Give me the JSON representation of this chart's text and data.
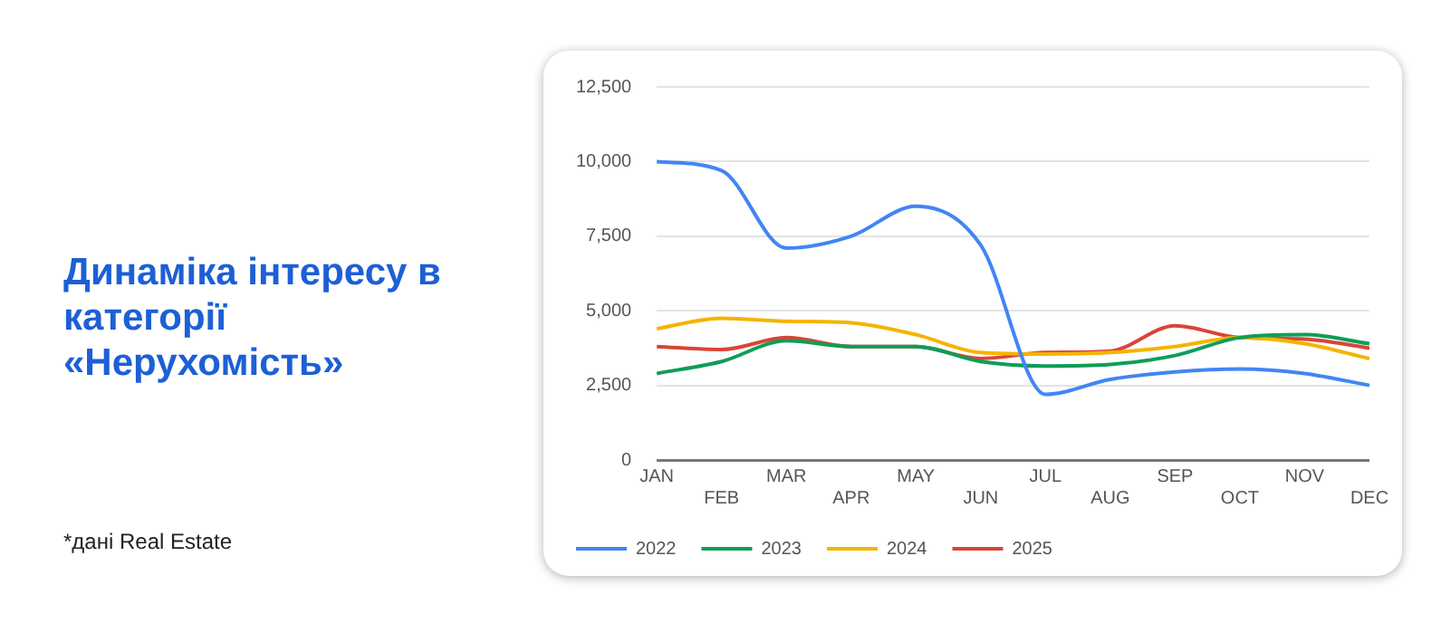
{
  "chart_data": {
    "type": "line",
    "title": "Динаміка інтересу в категорії «Нерухомість»",
    "annotations": [
      "*дані Real Estate"
    ],
    "categories": [
      "JAN",
      "FEB",
      "MAR",
      "APR",
      "MAY",
      "JUN",
      "JUL",
      "AUG",
      "SEP",
      "OCT",
      "NOV",
      "DEC"
    ],
    "series": [
      {
        "name": "2022",
        "color": "#4285f4",
        "values": [
          10000,
          9700,
          7100,
          7500,
          8500,
          7200,
          2200,
          2700,
          2950,
          3050,
          2900,
          2500
        ]
      },
      {
        "name": "2023",
        "color": "#0f9d58",
        "values": [
          2900,
          3300,
          4000,
          3800,
          3800,
          3300,
          3150,
          3200,
          3500,
          4100,
          4200,
          3900
        ]
      },
      {
        "name": "2024",
        "color": "#f4b400",
        "values": [
          4400,
          4750,
          4650,
          4600,
          4200,
          3600,
          3550,
          3600,
          3800,
          4100,
          3900,
          3400
        ]
      },
      {
        "name": "2025",
        "color": "#db4437",
        "values": [
          3800,
          3700,
          4100,
          3800,
          3800,
          3400,
          3600,
          3650,
          4500,
          4100,
          4050,
          3750
        ]
      }
    ],
    "ylim": [
      0,
      12500
    ],
    "yticks": [
      {
        "value": 0,
        "label": "0"
      },
      {
        "value": 2500,
        "label": "2,500"
      },
      {
        "value": 5000,
        "label": "5,000"
      },
      {
        "value": 7500,
        "label": "7,500"
      },
      {
        "value": 10000,
        "label": "10,000"
      },
      {
        "value": 12500,
        "label": "12,500"
      }
    ],
    "grid": "y",
    "legend": "bottom",
    "marker": "none",
    "line_style": "solid"
  }
}
